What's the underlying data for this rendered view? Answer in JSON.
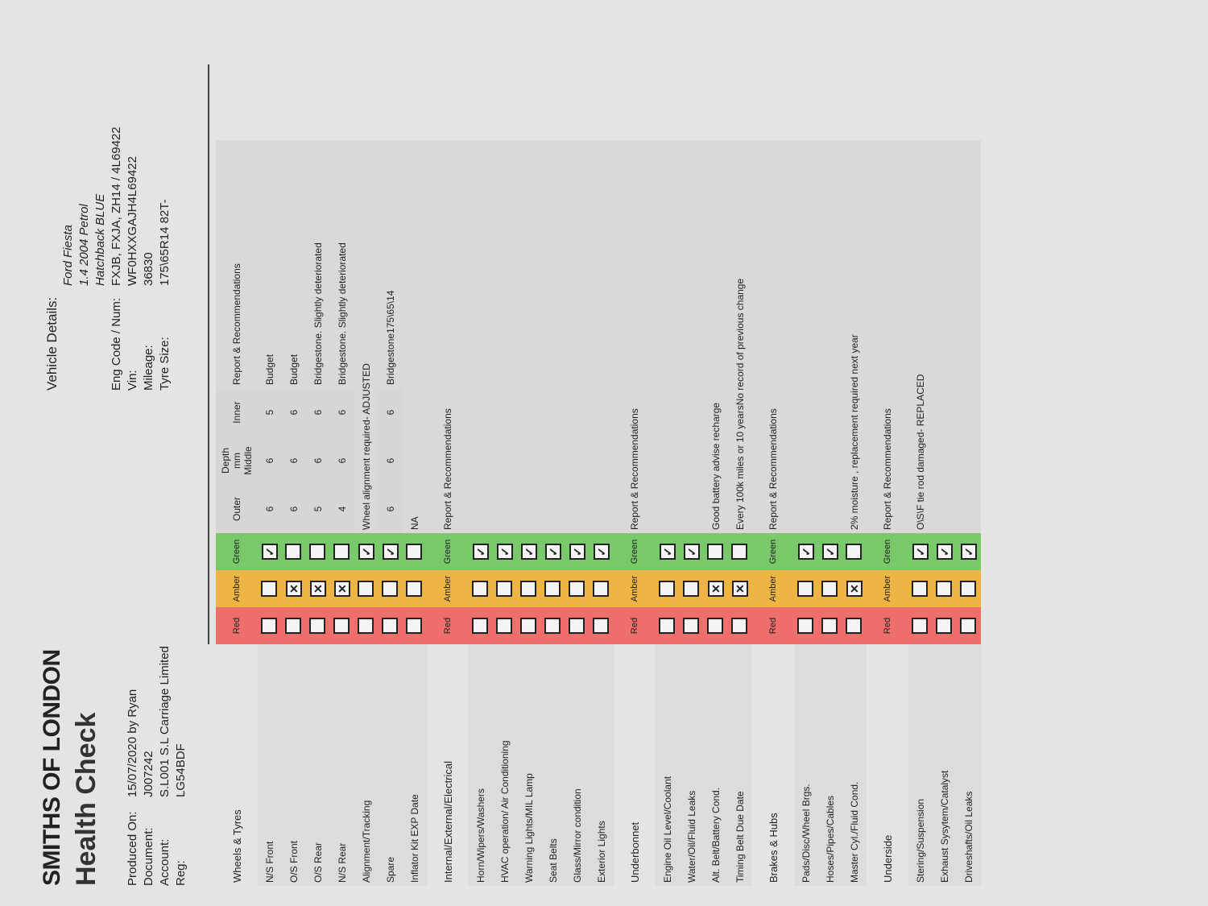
{
  "header": {
    "company": "SMITHS OF LONDON",
    "title": "Health Check",
    "fields": [
      {
        "label": "Produced On:",
        "value": "15/07/2020 by Ryan"
      },
      {
        "label": "Document:",
        "value": "J007242"
      },
      {
        "label": "Account:",
        "value": "S.L001   S.L Carriage Limited"
      },
      {
        "label": "Reg:",
        "value": "LG54BDF"
      }
    ]
  },
  "vehicle": {
    "heading": "Vehicle Details:",
    "lines": [
      "Ford Fiesta",
      "1.4 2004 Petrol",
      "Hatchback BLUE"
    ],
    "fields": [
      {
        "label": "Eng Code / Num:",
        "value": "FXJB, FXJA, ZH14 / 4L69422"
      },
      {
        "label": "Vin:",
        "value": "WF0HXXGAJH4L69422"
      },
      {
        "label": "Mileage:",
        "value": "36830"
      },
      {
        "label": "Tyre Size:",
        "value": "175\\65R14 82T-"
      }
    ]
  },
  "status_labels": [
    "Red",
    "Amber",
    "Green"
  ],
  "depth": {
    "heading": "Depth mm",
    "columns": [
      "Outer",
      "Middle",
      "Inner"
    ]
  },
  "sections": [
    {
      "title": "Wheels & Tyres",
      "report_heading": "Report & Recommendations",
      "rows": [
        {
          "item": "N/S Front",
          "status": "green",
          "depth": [
            6,
            6,
            5
          ],
          "report": "Budget"
        },
        {
          "item": "O/S Front",
          "status": "amber",
          "depth": [
            6,
            6,
            6
          ],
          "report": "Budget"
        },
        {
          "item": "O/S Rear",
          "status": "amber",
          "depth": [
            5,
            6,
            6
          ],
          "report": "Bridgestone. Slightly deteriorated"
        },
        {
          "item": "N/S Rear",
          "status": "amber",
          "depth": [
            4,
            6,
            6
          ],
          "report": "Bridgestone. Slightly deteriorated"
        },
        {
          "item": "Alignment/Tracking",
          "status": "green",
          "report": "Wheel alignment required- ADJUSTED"
        },
        {
          "item": "Spare",
          "status": "green",
          "depth": [
            6,
            6,
            6
          ],
          "report": "Bridgestone175\\65\\14"
        },
        {
          "item": "Inflator Kit EXP Date",
          "status": null,
          "report": "NA"
        }
      ]
    },
    {
      "title": "Internal/External/Electrical",
      "report_heading": "Report & Recommendations",
      "rows": [
        {
          "item": "Horn/Wipers/Washers",
          "status": "green"
        },
        {
          "item": "HVAC operation/ Air Conditioning",
          "status": "green"
        },
        {
          "item": "Warning Lights/MIL Lamp",
          "status": "green"
        },
        {
          "item": "Seat Belts",
          "status": "green"
        },
        {
          "item": "Glass/Mirror condition",
          "status": "green"
        },
        {
          "item": "Exterior Lights",
          "status": "green"
        }
      ]
    },
    {
      "title": "Underbonnet",
      "report_heading": "Report & Recommendations",
      "rows": [
        {
          "item": "Engine Oil Level/Coolant",
          "status": "green"
        },
        {
          "item": "Water/Oil/Fluid Leaks",
          "status": "green"
        },
        {
          "item": "Alt. Belt/Battery Cond.",
          "status": "amber",
          "report": "Good battery advise recharge"
        },
        {
          "item": "Timing Belt Due Date",
          "status": "amber",
          "report": "Every 100k miles or 10 yearsNo record of previous change"
        }
      ]
    },
    {
      "title": "Brakes & Hubs",
      "report_heading": "Report & Recommendations",
      "rows": [
        {
          "item": "Pads/Disc/Wheel Brgs.",
          "status": "green"
        },
        {
          "item": "Hoses/Pipes/Cables",
          "status": "green"
        },
        {
          "item": "Master Cyl./Fluid Cond.",
          "status": "amber",
          "report": "2% moisture , replacement required next year"
        }
      ]
    },
    {
      "title": "Underside",
      "report_heading": "Report & Recommendations",
      "rows": [
        {
          "item": "Stering/Suspension",
          "status": "green",
          "report": "O\\S\\F tie rod damaged- REPLACED"
        },
        {
          "item": "Exhaust Sysytem/Catalyst",
          "status": "green"
        },
        {
          "item": "Driveshafts/Oil Leaks",
          "status": "green"
        }
      ]
    }
  ]
}
